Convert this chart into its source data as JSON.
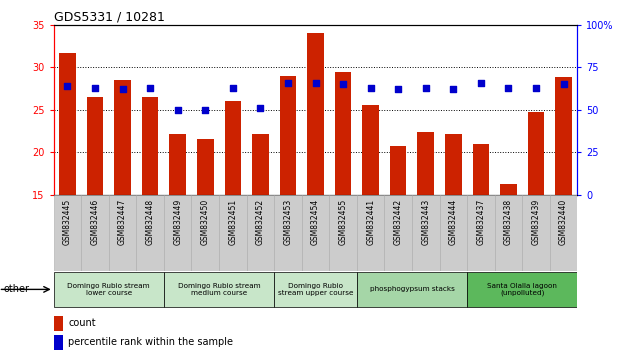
{
  "title": "GDS5331 / 10281",
  "samples": [
    "GSM832445",
    "GSM832446",
    "GSM832447",
    "GSM832448",
    "GSM832449",
    "GSM832450",
    "GSM832451",
    "GSM832452",
    "GSM832453",
    "GSM832454",
    "GSM832455",
    "GSM832441",
    "GSM832442",
    "GSM832443",
    "GSM832444",
    "GSM832437",
    "GSM832438",
    "GSM832439",
    "GSM832440"
  ],
  "count_values": [
    31.7,
    26.5,
    28.5,
    26.5,
    22.2,
    21.5,
    26.0,
    22.2,
    29.0,
    34.0,
    29.5,
    25.5,
    20.7,
    22.4,
    22.2,
    21.0,
    16.3,
    24.7,
    28.8
  ],
  "percentile_values": [
    64,
    63,
    62,
    63,
    50,
    50,
    63,
    51,
    66,
    66,
    65,
    63,
    62,
    63,
    62,
    66,
    63,
    63,
    65
  ],
  "ylim_left": [
    15,
    35
  ],
  "ylim_right": [
    0,
    100
  ],
  "yticks_left": [
    15,
    20,
    25,
    30,
    35
  ],
  "yticks_right": [
    0,
    25,
    50,
    75,
    100
  ],
  "bar_color": "#cc2200",
  "dot_color": "#0000cc",
  "groups": [
    {
      "label": "Domingo Rubio stream\nlower course",
      "start": 0,
      "end": 3,
      "color": "#c8e6c9"
    },
    {
      "label": "Domingo Rubio stream\nmedium course",
      "start": 4,
      "end": 7,
      "color": "#c8e6c9"
    },
    {
      "label": "Domingo Rubio\nstream upper course",
      "start": 8,
      "end": 10,
      "color": "#c8e6c9"
    },
    {
      "label": "phosphogypsum stacks",
      "start": 11,
      "end": 14,
      "color": "#a5d6a7"
    },
    {
      "label": "Santa Olalla lagoon\n(unpolluted)",
      "start": 15,
      "end": 18,
      "color": "#5cb85c"
    }
  ],
  "legend_count_label": "count",
  "legend_pct_label": "percentile rank within the sample",
  "other_label": "other",
  "fig_width": 6.31,
  "fig_height": 3.54,
  "tick_bg_color": "#cccccc",
  "tick_border_color": "#aaaaaa"
}
